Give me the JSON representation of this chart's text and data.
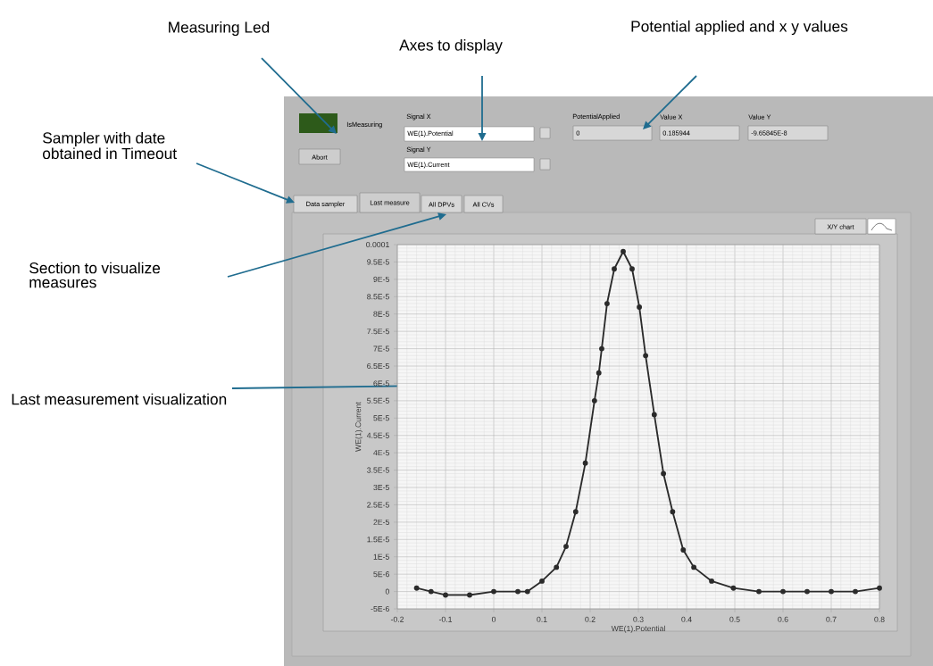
{
  "chart_data": {
    "type": "line",
    "xlabel": "WE(1).Potential",
    "ylabel": "WE(1).Current",
    "series": [
      {
        "color": "#2b2b2b",
        "x": [
          -0.16,
          -0.13,
          -0.1,
          -0.05,
          0,
          0.05,
          0.07,
          0.1,
          0.13,
          0.15,
          0.17,
          0.19,
          0.209,
          0.218,
          0.224,
          0.235,
          0.25,
          0.2685,
          0.287,
          0.302,
          0.315,
          0.333,
          0.352,
          0.371,
          0.393,
          0.415,
          0.452,
          0.497,
          0.55,
          0.6,
          0.65,
          0.7,
          0.75,
          0.8
        ],
        "values": [
          1e-06,
          0,
          -1e-06,
          -1e-06,
          0,
          0,
          0,
          3e-06,
          7e-06,
          1.3e-05,
          2.3e-05,
          3.7e-05,
          5.5e-05,
          6.3e-05,
          7e-05,
          8.3e-05,
          9.3e-05,
          9.8e-05,
          9.3e-05,
          8.2e-05,
          6.8e-05,
          5.1e-05,
          3.4e-05,
          2.3e-05,
          1.2e-05,
          7e-06,
          3e-06,
          1e-06,
          0,
          0,
          0,
          0,
          0,
          1e-06
        ]
      }
    ],
    "xlim": [
      -0.2,
      0.8
    ],
    "ylim": [
      -5e-06,
      0.0001
    ],
    "xticks": [
      -0.2,
      -0.1,
      0,
      0.1,
      0.2,
      0.3,
      0.4,
      0.5,
      0.6,
      0.7,
      0.8
    ],
    "yticks": [
      {
        "value": -5e-06,
        "label": "-5E-6"
      },
      0,
      {
        "value": 5e-06,
        "label": "5E-6"
      },
      {
        "value": 1e-05,
        "label": "1E-5"
      },
      {
        "value": 1.5e-05,
        "label": "1.5E-5"
      },
      {
        "value": 2e-05,
        "label": "2E-5"
      },
      {
        "value": 2.5e-05,
        "label": "2.5E-5"
      },
      {
        "value": 3e-05,
        "label": "3E-5"
      },
      {
        "value": 3.5e-05,
        "label": "3.5E-5"
      },
      {
        "value": 4e-05,
        "label": "4E-5"
      },
      {
        "value": 4.5e-05,
        "label": "4.5E-5"
      },
      {
        "value": 5e-05,
        "label": "5E-5"
      },
      {
        "value": 5.5e-05,
        "label": "5.5E-5"
      },
      {
        "value": 6e-05,
        "label": "6E-5"
      },
      {
        "value": 6.5e-05,
        "label": "6.5E-5"
      },
      {
        "value": 7e-05,
        "label": "7E-5"
      },
      {
        "value": 7.5e-05,
        "label": "7.5E-5"
      },
      {
        "value": 8e-05,
        "label": "8E-5"
      },
      {
        "value": 8.5e-05,
        "label": "8.5E-5"
      },
      {
        "value": 9e-05,
        "label": "9E-5"
      },
      {
        "value": 9.5e-05,
        "label": "9.5E-5"
      },
      {
        "value": 0.0001,
        "label": "0.0001"
      }
    ],
    "grid": true,
    "marker": "circle",
    "line_style": "solid",
    "annotations": [
      "Measuring Led",
      "Axes to display",
      "Potential applied and x y values",
      "Sampler with date obtained in Timeout",
      "Section to visualize measures",
      "Last measurement visualization",
      "IsMeasuring",
      "Abort",
      "Signal X",
      "WE(1).Potential",
      "Signal Y",
      "WE(1).Current",
      "PotentialApplied",
      "0",
      "Value X",
      "0.185944",
      "Value Y",
      "-9.65845E-8",
      "Data sampler",
      "Last measure",
      "All DPVs",
      "All CVs",
      "X/Y chart"
    ]
  }
}
